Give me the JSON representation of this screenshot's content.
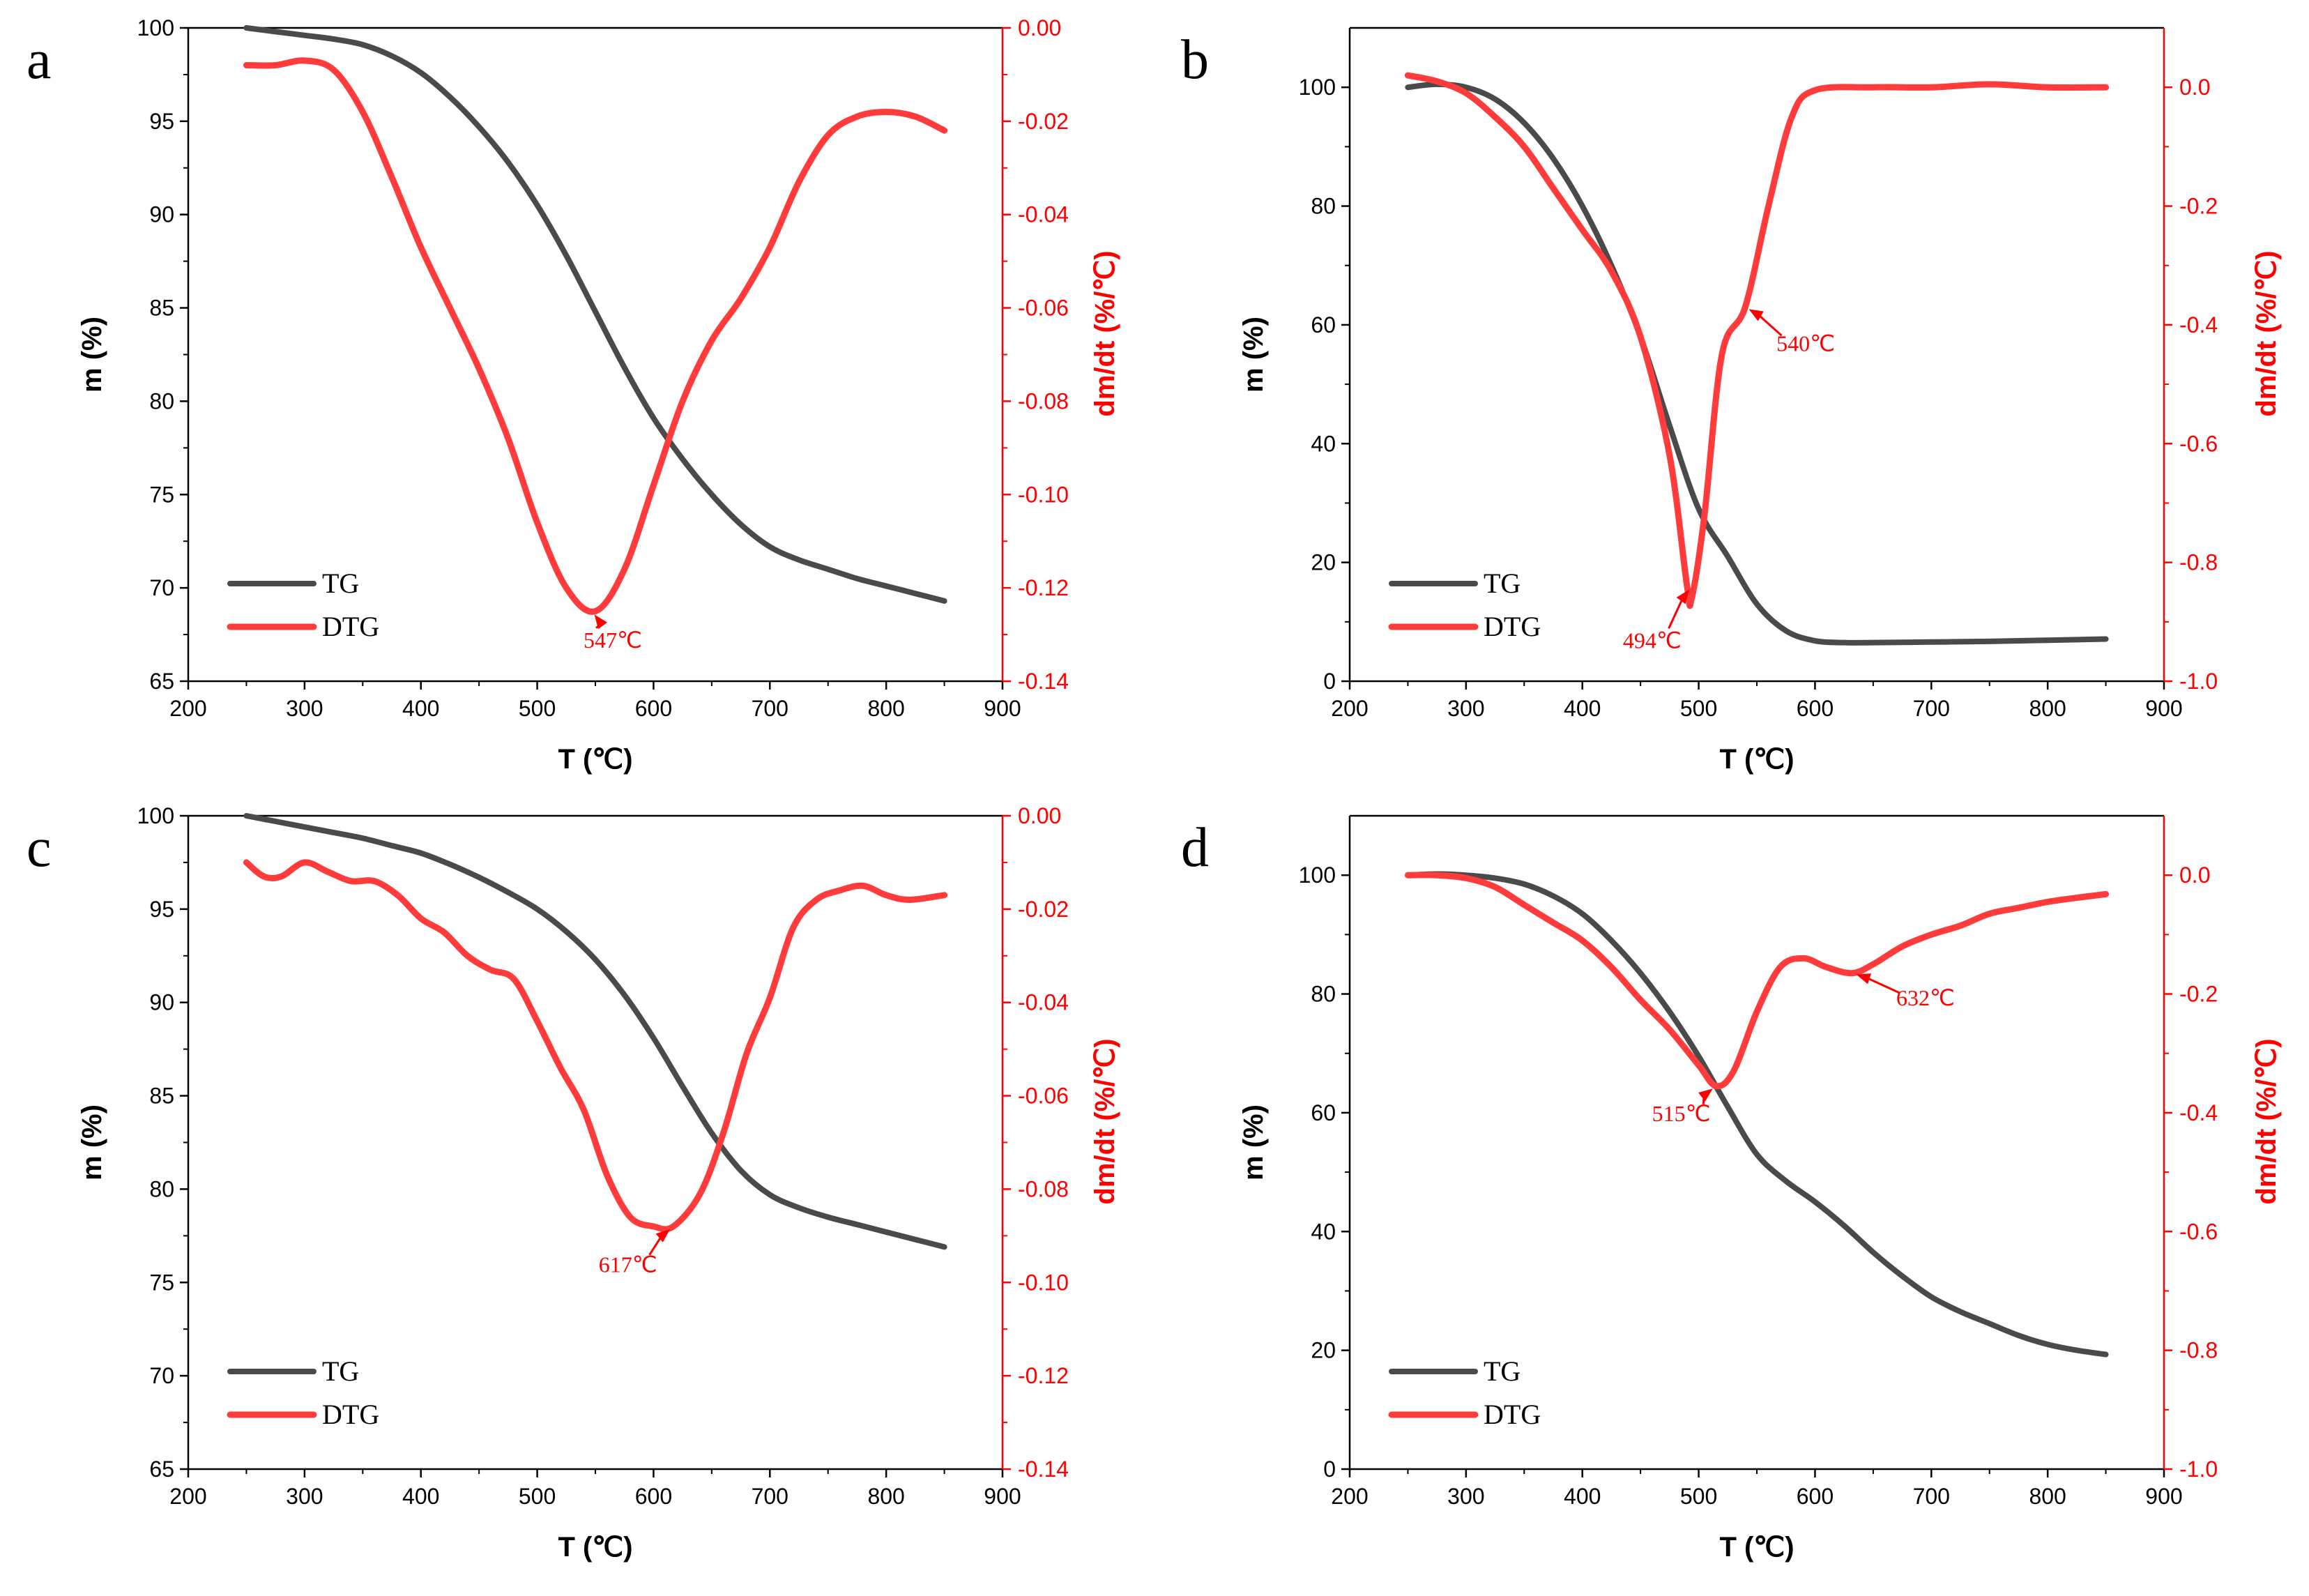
{
  "colors": {
    "tg": "#4a4a4a",
    "dtg": "#ff3b3b",
    "axis_left": "#000000",
    "axis_right": "#ff0000",
    "annotation": "#ff0000"
  },
  "chart_data": [
    {
      "panel": "a",
      "type": "line",
      "xlabel": "T (℃)",
      "ylabel": "m (%)",
      "y2label": "dm/dt (%/℃)",
      "xlim": [
        200,
        900
      ],
      "ylim": [
        65,
        100
      ],
      "y2lim": [
        -0.14,
        0.0
      ],
      "xticks": [
        200,
        300,
        400,
        500,
        600,
        700,
        800,
        900
      ],
      "yticks": [
        65,
        70,
        75,
        80,
        85,
        90,
        95,
        100
      ],
      "y2ticks": [
        -0.14,
        -0.12,
        -0.1,
        -0.08,
        -0.06,
        -0.04,
        -0.02,
        0.0
      ],
      "xtick_labels": [
        "200",
        "300",
        "400",
        "500",
        "600",
        "700",
        "800",
        "900"
      ],
      "ytick_labels": [
        "65",
        "70",
        "75",
        "80",
        "85",
        "90",
        "95",
        "100"
      ],
      "y2tick_labels": [
        "-0.14",
        "-0.12",
        "-0.10",
        "-0.08",
        "-0.06",
        "-0.04",
        "-0.02",
        "0.00"
      ],
      "grid": false,
      "legend_position": "bottom-left",
      "series": [
        {
          "name": "TG",
          "axis": "left",
          "x": [
            250,
            275,
            300,
            325,
            350,
            375,
            400,
            425,
            450,
            475,
            500,
            525,
            550,
            575,
            600,
            625,
            650,
            675,
            700,
            725,
            750,
            775,
            800,
            825,
            850
          ],
          "y": [
            100,
            99.8,
            99.6,
            99.4,
            99.1,
            98.5,
            97.6,
            96.3,
            94.7,
            92.8,
            90.5,
            87.8,
            84.8,
            81.8,
            79.1,
            76.9,
            75.0,
            73.4,
            72.2,
            71.5,
            71.0,
            70.5,
            70.1,
            69.7,
            69.3
          ]
        },
        {
          "name": "DTG",
          "axis": "right",
          "x": [
            250,
            275,
            300,
            325,
            350,
            375,
            400,
            425,
            450,
            475,
            500,
            525,
            550,
            575,
            600,
            625,
            650,
            675,
            700,
            725,
            750,
            775,
            800,
            825,
            850
          ],
          "y": [
            -0.008,
            -0.008,
            -0.007,
            -0.009,
            -0.018,
            -0.032,
            -0.047,
            -0.06,
            -0.073,
            -0.088,
            -0.106,
            -0.12,
            -0.125,
            -0.116,
            -0.098,
            -0.08,
            -0.067,
            -0.058,
            -0.047,
            -0.033,
            -0.023,
            -0.019,
            -0.018,
            -0.019,
            -0.022
          ]
        }
      ],
      "annotations": [
        {
          "text": "547℃",
          "x": 547,
          "y": -0.125,
          "axis": "right",
          "text_x": 565,
          "text_y": -0.131
        }
      ]
    },
    {
      "panel": "b",
      "type": "line",
      "xlabel": "T (℃)",
      "ylabel": "m (%)",
      "y2label": "dm/dt (%/℃)",
      "xlim": [
        200,
        900
      ],
      "ylim": [
        0,
        110
      ],
      "y2lim": [
        -1.0,
        0.1
      ],
      "xticks": [
        200,
        300,
        400,
        500,
        600,
        700,
        800,
        900
      ],
      "yticks": [
        0,
        20,
        40,
        60,
        80,
        100
      ],
      "y2ticks": [
        -1.0,
        -0.8,
        -0.6,
        -0.4,
        -0.2,
        0.0
      ],
      "xtick_labels": [
        "200",
        "300",
        "400",
        "500",
        "600",
        "700",
        "800",
        "900"
      ],
      "ytick_labels": [
        "0",
        "20",
        "40",
        "60",
        "80",
        "100"
      ],
      "y2tick_labels": [
        "-1.0",
        "-0.8",
        "-0.6",
        "-0.4",
        "-0.2",
        "0.0"
      ],
      "grid": false,
      "legend_position": "bottom-left",
      "series": [
        {
          "name": "TG",
          "axis": "left",
          "x": [
            250,
            275,
            300,
            325,
            350,
            375,
            400,
            425,
            450,
            475,
            500,
            525,
            550,
            575,
            600,
            625,
            650,
            700,
            750,
            800,
            850
          ],
          "y": [
            100,
            100.5,
            100,
            98,
            94,
            88,
            80,
            70,
            58,
            43,
            29,
            21,
            13,
            8.5,
            6.8,
            6.5,
            6.5,
            6.6,
            6.7,
            6.9,
            7.1
          ]
        },
        {
          "name": "DTG",
          "axis": "right",
          "x": [
            250,
            275,
            300,
            325,
            350,
            375,
            400,
            425,
            450,
            475,
            490,
            494,
            505,
            520,
            540,
            560,
            580,
            600,
            650,
            700,
            750,
            800,
            850
          ],
          "y": [
            0.02,
            0.01,
            -0.01,
            -0.05,
            -0.1,
            -0.17,
            -0.24,
            -0.31,
            -0.42,
            -0.62,
            -0.84,
            -0.86,
            -0.72,
            -0.45,
            -0.37,
            -0.2,
            -0.05,
            -0.005,
            0.0,
            0.0,
            0.005,
            0.0,
            0.0
          ]
        }
      ],
      "annotations": [
        {
          "text": "494℃",
          "x": 494,
          "y": -0.84,
          "axis": "right",
          "text_x": 460,
          "text_y": -0.93
        },
        {
          "text": "540℃",
          "x": 540,
          "y": -0.37,
          "axis": "right",
          "text_x": 592,
          "text_y": -0.43
        }
      ]
    },
    {
      "panel": "c",
      "type": "line",
      "xlabel": "T (℃)",
      "ylabel": "m (%)",
      "y2label": "dm/dt (%/℃)",
      "xlim": [
        200,
        900
      ],
      "ylim": [
        65,
        100
      ],
      "y2lim": [
        -0.14,
        0.0
      ],
      "xticks": [
        200,
        300,
        400,
        500,
        600,
        700,
        800,
        900
      ],
      "yticks": [
        65,
        70,
        75,
        80,
        85,
        90,
        95,
        100
      ],
      "y2ticks": [
        -0.14,
        -0.12,
        -0.1,
        -0.08,
        -0.06,
        -0.04,
        -0.02,
        0.0
      ],
      "xtick_labels": [
        "200",
        "300",
        "400",
        "500",
        "600",
        "700",
        "800",
        "900"
      ],
      "ytick_labels": [
        "65",
        "70",
        "75",
        "80",
        "85",
        "90",
        "95",
        "100"
      ],
      "y2tick_labels": [
        "-0.14",
        "-0.12",
        "-0.10",
        "-0.08",
        "-0.06",
        "-0.04",
        "-0.02",
        "0.00"
      ],
      "grid": false,
      "legend_position": "bottom-left",
      "series": [
        {
          "name": "TG",
          "axis": "left",
          "x": [
            250,
            275,
            300,
            325,
            350,
            375,
            400,
            425,
            450,
            475,
            500,
            525,
            550,
            575,
            600,
            625,
            650,
            675,
            700,
            725,
            750,
            775,
            800,
            825,
            850
          ],
          "y": [
            100,
            99.7,
            99.4,
            99.1,
            98.8,
            98.4,
            98.0,
            97.4,
            96.7,
            95.9,
            95.0,
            93.8,
            92.3,
            90.4,
            88.1,
            85.5,
            83.0,
            81.0,
            79.7,
            79.0,
            78.5,
            78.1,
            77.7,
            77.3,
            76.9
          ]
        },
        {
          "name": "DTG",
          "axis": "right",
          "x": [
            250,
            265,
            280,
            300,
            320,
            340,
            360,
            380,
            400,
            420,
            440,
            460,
            480,
            500,
            520,
            540,
            560,
            580,
            600,
            617,
            640,
            660,
            680,
            700,
            720,
            740,
            760,
            780,
            800,
            820,
            850
          ],
          "y": [
            -0.01,
            -0.013,
            -0.013,
            -0.01,
            -0.012,
            -0.014,
            -0.014,
            -0.017,
            -0.022,
            -0.025,
            -0.03,
            -0.033,
            -0.035,
            -0.044,
            -0.054,
            -0.063,
            -0.077,
            -0.086,
            -0.088,
            -0.088,
            -0.081,
            -0.068,
            -0.051,
            -0.039,
            -0.024,
            -0.018,
            -0.016,
            -0.015,
            -0.017,
            -0.018,
            -0.017
          ]
        }
      ],
      "annotations": [
        {
          "text": "617℃",
          "x": 617,
          "y": -0.088,
          "axis": "right",
          "text_x": 578,
          "text_y": -0.096
        }
      ]
    },
    {
      "panel": "d",
      "type": "line",
      "xlabel": "T (℃)",
      "ylabel": "m (%)",
      "y2label": "dm/dt (%/℃)",
      "xlim": [
        200,
        900
      ],
      "ylim": [
        0,
        110
      ],
      "y2lim": [
        -1.0,
        0.1
      ],
      "xticks": [
        200,
        300,
        400,
        500,
        600,
        700,
        800,
        900
      ],
      "yticks": [
        0,
        20,
        40,
        60,
        80,
        100
      ],
      "y2ticks": [
        -1.0,
        -0.8,
        -0.6,
        -0.4,
        -0.2,
        0.0
      ],
      "xtick_labels": [
        "200",
        "300",
        "400",
        "500",
        "600",
        "700",
        "800",
        "900"
      ],
      "ytick_labels": [
        "0",
        "20",
        "40",
        "60",
        "80",
        "100"
      ],
      "y2tick_labels": [
        "-1.0",
        "-0.8",
        "-0.6",
        "-0.4",
        "-0.2",
        "0.0"
      ],
      "grid": false,
      "legend_position": "bottom-left",
      "series": [
        {
          "name": "TG",
          "axis": "left",
          "x": [
            250,
            275,
            300,
            325,
            350,
            375,
            400,
            425,
            450,
            475,
            500,
            525,
            550,
            575,
            600,
            625,
            650,
            675,
            700,
            725,
            750,
            775,
            800,
            825,
            850
          ],
          "y": [
            100,
            100.2,
            100,
            99.5,
            98.5,
            96.5,
            93.5,
            89,
            83.5,
            77,
            69.5,
            61,
            53,
            48.5,
            45,
            41,
            36.5,
            32.5,
            29,
            26.5,
            24.5,
            22.5,
            21,
            20,
            19.3
          ]
        },
        {
          "name": "DTG",
          "axis": "right",
          "x": [
            250,
            275,
            300,
            325,
            350,
            375,
            400,
            425,
            450,
            475,
            500,
            515,
            530,
            550,
            570,
            590,
            610,
            632,
            650,
            675,
            700,
            725,
            750,
            775,
            800,
            825,
            850
          ],
          "y": [
            0.0,
            0.0,
            -0.005,
            -0.02,
            -0.05,
            -0.08,
            -0.11,
            -0.155,
            -0.21,
            -0.26,
            -0.32,
            -0.355,
            -0.33,
            -0.23,
            -0.155,
            -0.14,
            -0.155,
            -0.165,
            -0.15,
            -0.12,
            -0.1,
            -0.085,
            -0.065,
            -0.055,
            -0.045,
            -0.038,
            -0.032
          ]
        }
      ],
      "annotations": [
        {
          "text": "515℃",
          "x": 515,
          "y": -0.355,
          "axis": "right",
          "text_x": 485,
          "text_y": -0.4
        },
        {
          "text": "632℃",
          "x": 632,
          "y": -0.165,
          "axis": "right",
          "text_x": 695,
          "text_y": -0.205
        }
      ]
    }
  ]
}
